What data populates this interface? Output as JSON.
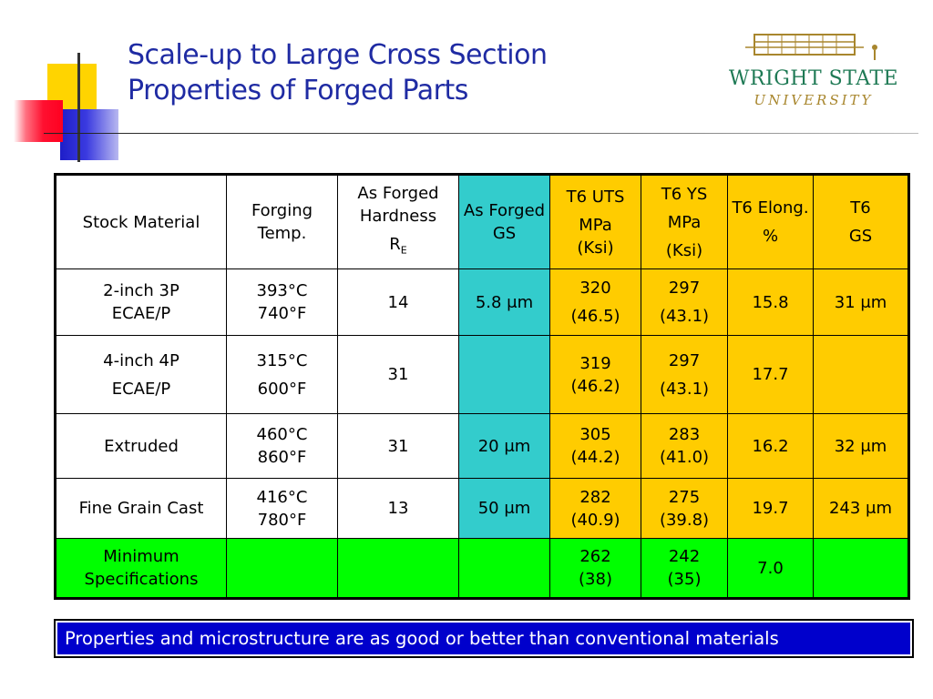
{
  "title": {
    "line1": "Scale-up to Large Cross Section",
    "line2": "Properties of Forged Parts"
  },
  "logo": {
    "line1": "WRIGHT STATE",
    "line2": "UNIVERSITY",
    "colors": {
      "green": "#1f7a55",
      "gold": "#a8862d"
    }
  },
  "colors": {
    "title": "#1f2ba3",
    "teal": "#33cccc",
    "yellow": "#ffcc00",
    "green": "#00ff00",
    "footer": "#0000cc"
  },
  "table": {
    "headers": {
      "stock": "Stock Material",
      "temp": "Forging Temp.",
      "hardness": "As Forged Hardness",
      "hardness_symbol": "R",
      "hardness_sub": "E",
      "gs": "As Forged GS",
      "uts_1": "T6 UTS",
      "uts_2": "MPa",
      "uts_3": "(Ksi)",
      "ys_1": "T6 YS",
      "ys_2": "MPa",
      "ys_3": "(Ksi)",
      "elong_1": "T6 Elong.",
      "elong_2": "%",
      "t6gs_1": "T6",
      "t6gs_2": "GS"
    },
    "rows": [
      {
        "stock_1": "2-inch 3P",
        "stock_2": "ECAE/P",
        "temp_1": "393°C",
        "temp_2": "740°F",
        "hardness": "14",
        "gs": "5.8 μm",
        "uts_1": "320",
        "uts_2": "(46.5)",
        "ys_1": "297",
        "ys_2": "(43.1)",
        "elong": "15.8",
        "t6gs": "31 μm"
      },
      {
        "stock_1": "4-inch 4P",
        "stock_2": "ECAE/P",
        "temp_1": "315°C",
        "temp_2": "600°F",
        "hardness": "31",
        "gs": "",
        "uts_1": "319",
        "uts_2": "(46.2)",
        "ys_1": "297",
        "ys_2": "(43.1)",
        "elong": "17.7",
        "t6gs": ""
      },
      {
        "stock_1": "Extruded",
        "temp_1": "460°C",
        "temp_2": "860°F",
        "hardness": "31",
        "gs": "20 μm",
        "uts_1": "305",
        "uts_2": "(44.2)",
        "ys_1": "283",
        "ys_2": "(41.0)",
        "elong": "16.2",
        "t6gs": "32 μm"
      },
      {
        "stock_1": "Fine Grain Cast",
        "temp_1": "416°C",
        "temp_2": "780°F",
        "hardness": "13",
        "gs": "50 μm",
        "uts_1": "282",
        "uts_2": "(40.9)",
        "ys_1": "275",
        "ys_2": "(39.8)",
        "elong": "19.7",
        "t6gs": "243 μm"
      },
      {
        "stock_1": "Minimum",
        "stock_2": "Specifications",
        "uts_1": "262",
        "uts_2": "(38)",
        "ys_1": "242",
        "ys_2": "(35)",
        "elong": "7.0"
      }
    ]
  },
  "footer": {
    "text": "Properties and microstructure are as good or better than conventional materials"
  }
}
